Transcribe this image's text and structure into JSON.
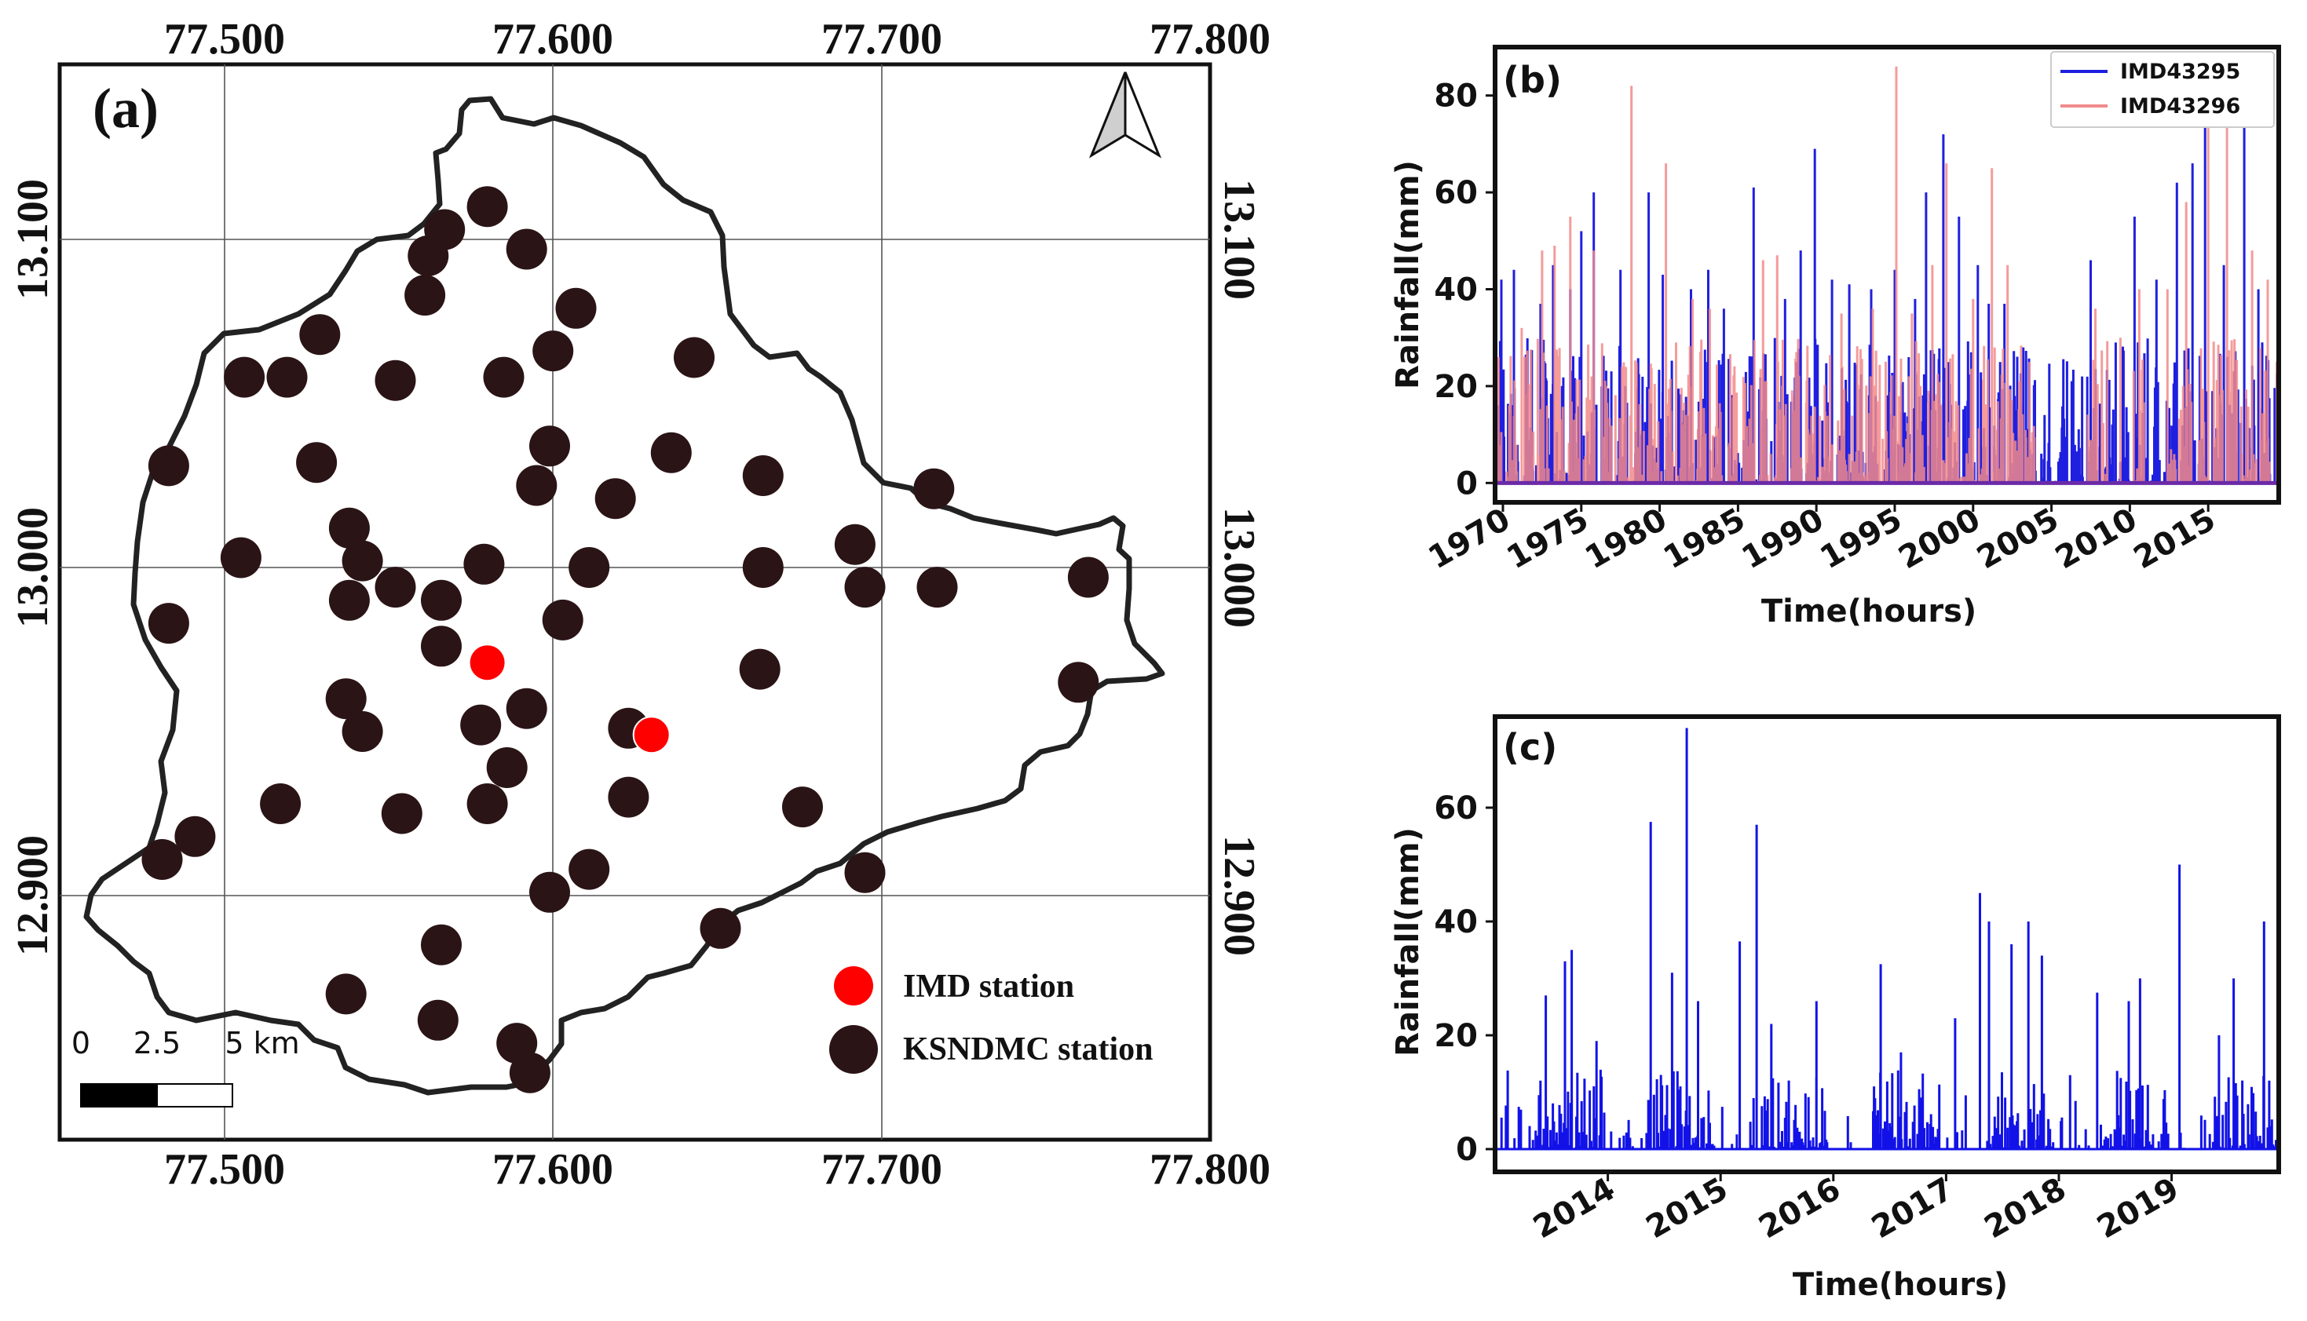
{
  "chart_data": [
    {
      "type": "map",
      "panel": "(a)",
      "x_ticks": [
        "77.500",
        "77.600",
        "77.700",
        "77.800"
      ],
      "x_values": [
        77.5,
        77.6,
        77.7,
        77.8
      ],
      "y_ticks": [
        "12.900",
        "13.000",
        "13.100"
      ],
      "y_values": [
        12.9,
        13.0,
        13.1
      ],
      "xlim": [
        77.45,
        77.8
      ],
      "ylim": [
        12.83,
        13.16
      ],
      "legend": [
        {
          "label": "IMD station",
          "color": "#ff0000"
        },
        {
          "label": "KSNDMC station",
          "color": "#2a1416"
        }
      ],
      "scalebar": {
        "labels": [
          "0",
          "2.5",
          "5 km"
        ]
      },
      "north_arrow": true,
      "imd_stations": [
        [
          77.58,
          12.971
        ],
        [
          77.63,
          12.949
        ]
      ],
      "ksndmc_stations": [
        [
          77.58,
          13.11
        ],
        [
          77.567,
          13.103
        ],
        [
          77.562,
          13.095
        ],
        [
          77.592,
          13.097
        ],
        [
          77.561,
          13.083
        ],
        [
          77.607,
          13.079
        ],
        [
          77.529,
          13.071
        ],
        [
          77.6,
          13.066
        ],
        [
          77.643,
          13.064
        ],
        [
          77.506,
          13.058
        ],
        [
          77.519,
          13.058
        ],
        [
          77.552,
          13.057
        ],
        [
          77.585,
          13.058
        ],
        [
          77.483,
          13.031
        ],
        [
          77.528,
          13.032
        ],
        [
          77.599,
          13.037
        ],
        [
          77.636,
          13.035
        ],
        [
          77.595,
          13.025
        ],
        [
          77.619,
          13.021
        ],
        [
          77.664,
          13.028
        ],
        [
          77.716,
          13.024
        ],
        [
          77.538,
          13.012
        ],
        [
          77.542,
          13.002
        ],
        [
          77.505,
          13.003
        ],
        [
          77.579,
          13.001
        ],
        [
          77.611,
          13.0
        ],
        [
          77.664,
          13.0
        ],
        [
          77.692,
          13.007
        ],
        [
          77.538,
          12.99
        ],
        [
          77.552,
          12.994
        ],
        [
          77.566,
          12.99
        ],
        [
          77.695,
          12.994
        ],
        [
          77.717,
          12.994
        ],
        [
          77.763,
          12.997
        ],
        [
          77.483,
          12.983
        ],
        [
          77.603,
          12.984
        ],
        [
          77.566,
          12.976
        ],
        [
          77.663,
          12.969
        ],
        [
          77.537,
          12.96
        ],
        [
          77.76,
          12.965
        ],
        [
          77.542,
          12.95
        ],
        [
          77.578,
          12.952
        ],
        [
          77.592,
          12.957
        ],
        [
          77.623,
          12.951
        ],
        [
          77.586,
          12.939
        ],
        [
          77.517,
          12.928
        ],
        [
          77.58,
          12.928
        ],
        [
          77.623,
          12.93
        ],
        [
          77.676,
          12.927
        ],
        [
          77.554,
          12.925
        ],
        [
          77.491,
          12.918
        ],
        [
          77.481,
          12.911
        ],
        [
          77.611,
          12.908
        ],
        [
          77.695,
          12.907
        ],
        [
          77.599,
          12.901
        ],
        [
          77.566,
          12.885
        ],
        [
          77.651,
          12.89
        ],
        [
          77.537,
          12.87
        ],
        [
          77.565,
          12.862
        ],
        [
          77.589,
          12.855
        ],
        [
          77.593,
          12.846
        ]
      ]
    },
    {
      "type": "line",
      "panel": "(b)",
      "xlabel": "Time(hours)",
      "ylabel": "Rainfall(mm)",
      "x_tick_labels": [
        "1970",
        "1975",
        "1980",
        "1985",
        "1990",
        "1995",
        "2000",
        "2005",
        "2010",
        "2015"
      ],
      "x_tick_values": [
        1970,
        1975,
        1980,
        1985,
        1990,
        1995,
        2000,
        2005,
        2010,
        2015
      ],
      "y_tick_labels": [
        "0",
        "20",
        "40",
        "60",
        "80"
      ],
      "y_tick_values": [
        0,
        20,
        40,
        60,
        80
      ],
      "xlim": [
        1969.5,
        2019.5
      ],
      "ylim": [
        -4,
        90
      ],
      "series": [
        {
          "name": "IMD43295",
          "color": "#1f1fe0",
          "peaks": [
            [
              1969.9,
              42
            ],
            [
              1970.7,
              44
            ],
            [
              1972.4,
              37
            ],
            [
              1973.2,
              45
            ],
            [
              1974.3,
              40
            ],
            [
              1975.0,
              52
            ],
            [
              1975.8,
              60
            ],
            [
              1977.5,
              44
            ],
            [
              1979.3,
              60
            ],
            [
              1980.2,
              43
            ],
            [
              1982.0,
              40
            ],
            [
              1983.1,
              44
            ],
            [
              1984.1,
              36
            ],
            [
              1986.0,
              61
            ],
            [
              1988.0,
              38
            ],
            [
              1989.0,
              48
            ],
            [
              1989.9,
              69
            ],
            [
              1991.0,
              42
            ],
            [
              1992.1,
              41
            ],
            [
              1993.5,
              40
            ],
            [
              1995.0,
              44
            ],
            [
              1996.3,
              38
            ],
            [
              1997.0,
              60
            ],
            [
              1998.1,
              72
            ],
            [
              1999.1,
              55
            ],
            [
              2000.3,
              45
            ],
            [
              2001.0,
              37
            ],
            [
              2002.0,
              37
            ],
            [
              2003.2,
              28
            ],
            [
              2007.5,
              46
            ],
            [
              2009.1,
              29
            ],
            [
              2010.3,
              55
            ],
            [
              2011.7,
              42
            ],
            [
              2013.0,
              62
            ],
            [
              2014.0,
              66
            ],
            [
              2014.8,
              80
            ],
            [
              2016.0,
              45
            ],
            [
              2017.3,
              75
            ],
            [
              2018.2,
              40
            ]
          ]
        },
        {
          "name": "IMD43296",
          "color": "#f28a8a",
          "peaks": [
            [
              1971.2,
              32
            ],
            [
              1972.5,
              48
            ],
            [
              1973.3,
              49
            ],
            [
              1974.3,
              55
            ],
            [
              1975.8,
              48
            ],
            [
              1977.6,
              24
            ],
            [
              1978.2,
              82
            ],
            [
              1980.4,
              66
            ],
            [
              1982.1,
              38
            ],
            [
              1983.2,
              36
            ],
            [
              1986.6,
              46
            ],
            [
              1987.5,
              47
            ],
            [
              1991.6,
              35
            ],
            [
              1993.6,
              36
            ],
            [
              1995.1,
              86
            ],
            [
              1996.1,
              35
            ],
            [
              1997.4,
              45
            ],
            [
              1998.3,
              66
            ],
            [
              2000.0,
              38
            ],
            [
              2001.2,
              65
            ],
            [
              2002.2,
              45
            ],
            [
              2003.6,
              25
            ],
            [
              2007.8,
              36
            ],
            [
              2009.4,
              30
            ],
            [
              2010.6,
              40
            ],
            [
              2012.4,
              40
            ],
            [
              2013.6,
              58
            ],
            [
              2015.0,
              80
            ],
            [
              2016.2,
              77
            ],
            [
              2017.8,
              48
            ],
            [
              2018.8,
              42
            ]
          ],
          "dry_gaps": [
            [
              2004.0,
              2007.2
            ],
            [
              2008.6,
              2010.0
            ],
            [
              2011.1,
              2012.4
            ]
          ]
        }
      ]
    },
    {
      "type": "line",
      "panel": "(c)",
      "xlabel": "Time(hours)",
      "ylabel": "Rainfall(mm)",
      "x_tick_labels": [
        "2014",
        "2015",
        "2016",
        "2017",
        "2018",
        "2019"
      ],
      "x_tick_values": [
        2014,
        2015,
        2016,
        2017,
        2018,
        2019
      ],
      "y_tick_labels": [
        "0",
        "20",
        "40",
        "60"
      ],
      "y_tick_values": [
        0,
        20,
        40,
        60
      ],
      "xlim": [
        2013.0,
        2019.95
      ],
      "ylim": [
        -4,
        76
      ],
      "series": [
        {
          "name": "IMD43295",
          "color": "#1212e8",
          "peaks": [
            [
              2013.45,
              27
            ],
            [
              2013.62,
              33
            ],
            [
              2013.68,
              35
            ],
            [
              2013.9,
              19
            ],
            [
              2014.38,
              57.5
            ],
            [
              2014.57,
              31
            ],
            [
              2014.7,
              74
            ],
            [
              2014.8,
              26
            ],
            [
              2015.17,
              36.5
            ],
            [
              2015.32,
              57
            ],
            [
              2015.45,
              22
            ],
            [
              2015.85,
              26
            ],
            [
              2016.42,
              32.5
            ],
            [
              2016.6,
              17
            ],
            [
              2017.08,
              23
            ],
            [
              2017.3,
              45
            ],
            [
              2017.38,
              40
            ],
            [
              2017.58,
              36
            ],
            [
              2017.73,
              40
            ],
            [
              2017.85,
              34
            ],
            [
              2018.1,
              13
            ],
            [
              2018.34,
              27.5
            ],
            [
              2018.62,
              26
            ],
            [
              2018.72,
              30
            ],
            [
              2019.07,
              50
            ],
            [
              2019.42,
              20
            ],
            [
              2019.55,
              30
            ],
            [
              2019.82,
              40
            ]
          ]
        }
      ]
    }
  ]
}
